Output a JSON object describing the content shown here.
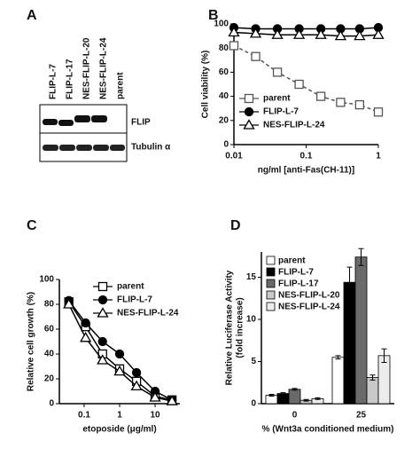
{
  "blot": {
    "panel": "A",
    "lanes": [
      "FLIP-L-7",
      "FLIP-L-17",
      "NES-FLIP-L-20",
      "NES-FLIP-L-24",
      "parent"
    ],
    "bands": [
      "FLIP",
      "Tubulin α"
    ]
  },
  "chart_data": [
    {
      "type": "line",
      "panel": "B",
      "xscale": "log",
      "xlabel": "ng/ml [anti-Fas(CH-11)]",
      "ylabel": "Cell viability (%)",
      "xlim": [
        0.01,
        1
      ],
      "xticks": [
        0.01,
        0.1,
        1
      ],
      "ylim": [
        0,
        100
      ],
      "yticks": [
        0,
        20,
        40,
        60,
        80,
        100
      ],
      "legend": "lower left",
      "x": [
        0.01,
        0.02,
        0.04,
        0.08,
        0.16,
        0.3,
        0.55,
        1
      ],
      "series": [
        {
          "name": "parent",
          "color": "#555",
          "marker": "square",
          "filled": false,
          "dashed": true,
          "values": [
            82,
            73,
            60,
            50,
            40,
            35,
            33,
            27
          ]
        },
        {
          "name": "FLIP-L-7",
          "color": "#000",
          "marker": "circle",
          "filled": true,
          "dashed": false,
          "values": [
            97,
            96,
            96,
            96,
            96,
            96,
            96,
            97
          ]
        },
        {
          "name": "NES-FLIP-L-24",
          "color": "#000",
          "marker": "triangle",
          "filled": false,
          "dashed": false,
          "values": [
            93,
            92,
            91,
            91,
            91,
            90,
            90,
            91
          ]
        }
      ]
    },
    {
      "type": "line",
      "panel": "C",
      "xscale": "log",
      "xlabel": "etoposide (μg/ml)",
      "ylabel": "Relative cell growth (%)",
      "xlim": [
        0.02,
        50
      ],
      "xticks": [
        0.1,
        1,
        10
      ],
      "ylim": [
        0,
        100
      ],
      "yticks": [
        0,
        20,
        40,
        60,
        80,
        100
      ],
      "legend": "upper right",
      "x": [
        0.037,
        0.11,
        0.33,
        1,
        3,
        10,
        30
      ],
      "series": [
        {
          "name": "parent",
          "color": "#000",
          "marker": "square",
          "filled": false,
          "dashed": false,
          "values": [
            82,
            62,
            40,
            28,
            18,
            6,
            3
          ]
        },
        {
          "name": "FLIP-L-7",
          "color": "#000",
          "marker": "circle",
          "filled": true,
          "dashed": false,
          "values": [
            83,
            65,
            50,
            40,
            25,
            10,
            3
          ]
        },
        {
          "name": "NES-FLIP-L-24",
          "color": "#000",
          "marker": "triangle",
          "filled": false,
          "dashed": false,
          "values": [
            80,
            53,
            35,
            26,
            14,
            5,
            2
          ]
        }
      ]
    },
    {
      "type": "bar",
      "panel": "D",
      "xlabel": "% (Wnt3a conditioned medium)",
      "ylabel": [
        "Relative Luciferase Activity",
        "(fold increase)"
      ],
      "ylim": [
        0,
        18
      ],
      "yticks": [
        0,
        5,
        10,
        15
      ],
      "legend": "upper left",
      "categories": [
        "0",
        "25"
      ],
      "series": [
        {
          "name": "parent",
          "color": "#ffffff",
          "values": [
            1.0,
            5.5
          ],
          "errors": [
            0.1,
            0.2
          ]
        },
        {
          "name": "FLIP-L-7",
          "color": "#000000",
          "values": [
            1.2,
            14.4
          ],
          "errors": [
            0.1,
            1.8
          ]
        },
        {
          "name": "FLIP-L-17",
          "color": "#6a6a6a",
          "values": [
            1.7,
            17.4
          ],
          "errors": [
            0.1,
            1.0
          ]
        },
        {
          "name": "NES-FLIP-L-20",
          "color": "#c8c8c8",
          "values": [
            0.4,
            3.1
          ],
          "errors": [
            0.1,
            0.3
          ]
        },
        {
          "name": "NES-FLIP-L-24",
          "color": "#ececec",
          "values": [
            0.6,
            5.7
          ],
          "errors": [
            0.1,
            0.8
          ]
        }
      ]
    }
  ]
}
